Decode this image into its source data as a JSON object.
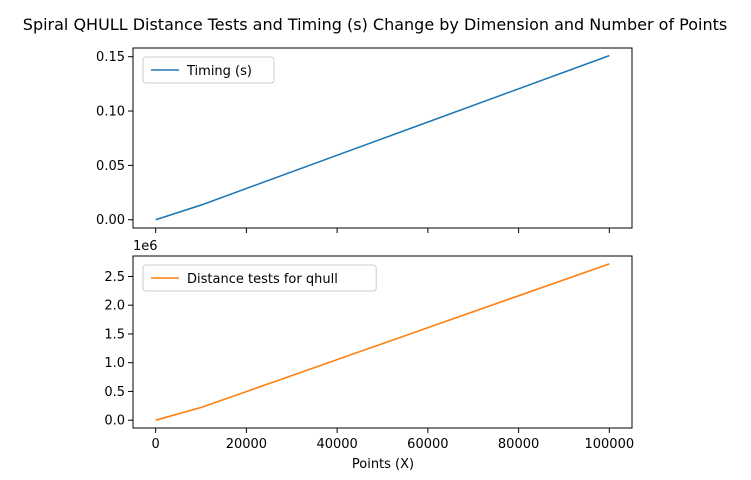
{
  "chart_data": {
    "title": "Spiral QHULL Distance Tests and Timing (s) Change by Dimension and Number of Points",
    "xlabel": "Points (X)",
    "x": [
      0,
      10000,
      100000
    ],
    "xlim": [
      -5000,
      105000
    ],
    "xticks": [
      0,
      20000,
      40000,
      60000,
      80000,
      100000
    ],
    "xtick_labels": [
      "0",
      "20000",
      "40000",
      "60000",
      "80000",
      "100000"
    ],
    "subplots": [
      {
        "type": "line",
        "series": [
          {
            "name": "Timing (s)",
            "color": "#1f77b4",
            "x": [
              0,
              10000,
              100000
            ],
            "y": [
              0.0,
              0.0135,
              0.151
            ]
          }
        ],
        "ylim": [
          -0.0076,
          0.158
        ],
        "yticks": [
          0.0,
          0.05,
          0.1,
          0.15
        ],
        "ytick_labels": [
          "0.00",
          "0.05",
          "0.10",
          "0.15"
        ],
        "offset_label": "",
        "legend": "upper-left",
        "show_xtick_labels": false
      },
      {
        "type": "line",
        "series": [
          {
            "name": "Distance tests for qhull",
            "color": "#ff7f0e",
            "x": [
              0,
              10000,
              100000
            ],
            "y": [
              0,
              220000,
              2720000
            ]
          }
        ],
        "ylim": [
          -136000,
          2856000
        ],
        "yticks": [
          0,
          500000,
          1000000,
          1500000,
          2000000,
          2500000
        ],
        "ytick_labels": [
          "0.0",
          "0.5",
          "1.0",
          "1.5",
          "2.0",
          "2.5"
        ],
        "offset_label": "1e6",
        "legend": "upper-left",
        "show_xtick_labels": true
      }
    ]
  }
}
